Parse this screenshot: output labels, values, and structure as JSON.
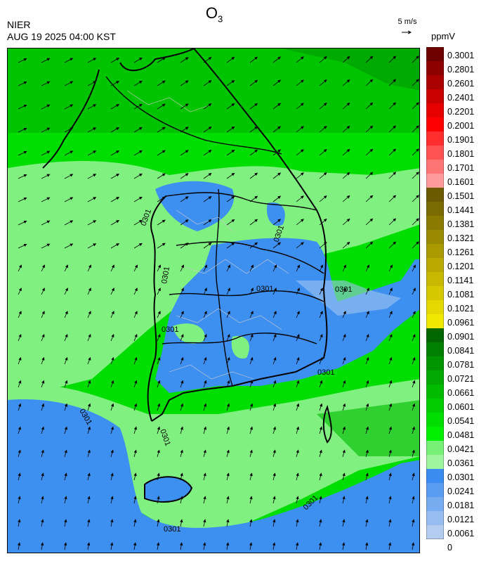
{
  "header": {
    "title": "O",
    "title_sub": "3",
    "agency": "NIER",
    "datetime": "AUG 19 2025 04:00 KST",
    "wind_scale_label": "5 m/s",
    "unit": "ppmV"
  },
  "legend": {
    "levels": [
      "0.3001",
      "0.2801",
      "0.2601",
      "0.2401",
      "0.2201",
      "0.2001",
      "0.1901",
      "0.1801",
      "0.1701",
      "0.1601",
      "0.1501",
      "0.1441",
      "0.1381",
      "0.1321",
      "0.1261",
      "0.1201",
      "0.1141",
      "0.1081",
      "0.1021",
      "0.0961",
      "0.0901",
      "0.0841",
      "0.0781",
      "0.0721",
      "0.0661",
      "0.0601",
      "0.0541",
      "0.0481",
      "0.0421",
      "0.0361",
      "0.0301",
      "0.0241",
      "0.0181",
      "0.0121",
      "0.0061",
      "0"
    ],
    "colors": [
      "#6e0000",
      "#8c0000",
      "#aa0000",
      "#c80000",
      "#e60000",
      "#ff0000",
      "#ff2e2e",
      "#ff5252",
      "#ff7474",
      "#ff9a9a",
      "#6b5a00",
      "#7a6a00",
      "#8a7a00",
      "#9a8a00",
      "#aa9a00",
      "#baaa00",
      "#c8b800",
      "#d6c800",
      "#e4d800",
      "#f0e800",
      "#006600",
      "#007f00",
      "#009500",
      "#00a800",
      "#00bb00",
      "#00cc00",
      "#00dd00",
      "#00ee00",
      "#77f077",
      "#9ef59e",
      "#3b8cf0",
      "#5a9cf0",
      "#78acf0",
      "#96bcf0",
      "#b4ccf0"
    ]
  },
  "map": {
    "contour_label": "0.0301",
    "contour_labels": [
      "0301",
      "0301",
      "0301",
      "0301",
      "0301",
      "0301",
      "0301",
      "0301",
      "0301",
      "0301",
      "0301"
    ]
  }
}
